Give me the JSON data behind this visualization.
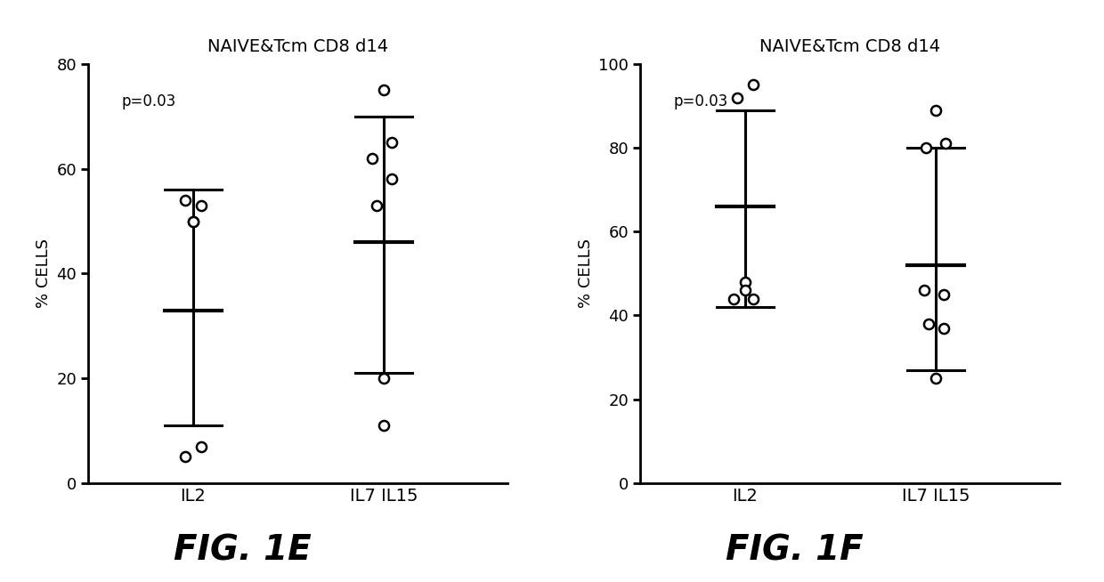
{
  "background_color": "#ffffff",
  "fig_labels": [
    "FIG. 1E",
    "FIG. 1F"
  ],
  "left_chart": {
    "title": "NAIVE&Tcm CD8 d14",
    "ylabel": "% CELLS",
    "pvalue": "p=0.03",
    "ylim": [
      0,
      80
    ],
    "yticks": [
      0,
      20,
      40,
      60,
      80
    ],
    "categories": [
      "IL2",
      "IL7 IL15"
    ],
    "IL2_points": [
      [
        -0.04,
        54
      ],
      [
        0.04,
        53
      ],
      [
        0.0,
        50
      ],
      [
        0.0,
        50
      ],
      [
        -0.04,
        5
      ],
      [
        0.04,
        7
      ]
    ],
    "IL2_mean": 33,
    "IL2_upper": 56,
    "IL2_lower": 11,
    "IL7IL15_points": [
      [
        -0.04,
        53
      ],
      [
        0.04,
        58
      ],
      [
        -0.06,
        62
      ],
      [
        0.04,
        65
      ],
      [
        0.0,
        75
      ],
      [
        0.0,
        20
      ],
      [
        0.0,
        11
      ]
    ],
    "IL7IL15_mean": 46,
    "IL7IL15_upper": 70,
    "IL7IL15_lower": 21
  },
  "right_chart": {
    "title": "NAIVE&Tcm CD8 d14",
    "ylabel": "% CELLS",
    "pvalue": "p=0.03",
    "ylim": [
      0,
      100
    ],
    "yticks": [
      0,
      20,
      40,
      60,
      80,
      100
    ],
    "categories": [
      "IL2",
      "IL7 IL15"
    ],
    "IL2_points": [
      [
        -0.04,
        92
      ],
      [
        0.04,
        95
      ],
      [
        0.0,
        48
      ],
      [
        -0.06,
        44
      ],
      [
        0.04,
        44
      ],
      [
        0.0,
        46
      ]
    ],
    "IL2_mean": 66,
    "IL2_upper": 89,
    "IL2_lower": 42,
    "IL7IL15_points": [
      [
        0.0,
        89
      ],
      [
        -0.05,
        80
      ],
      [
        0.05,
        81
      ],
      [
        -0.06,
        46
      ],
      [
        0.04,
        45
      ],
      [
        -0.04,
        38
      ],
      [
        0.04,
        37
      ],
      [
        0.0,
        25
      ]
    ],
    "IL7IL15_mean": 52,
    "IL7IL15_upper": 80,
    "IL7IL15_lower": 27
  }
}
